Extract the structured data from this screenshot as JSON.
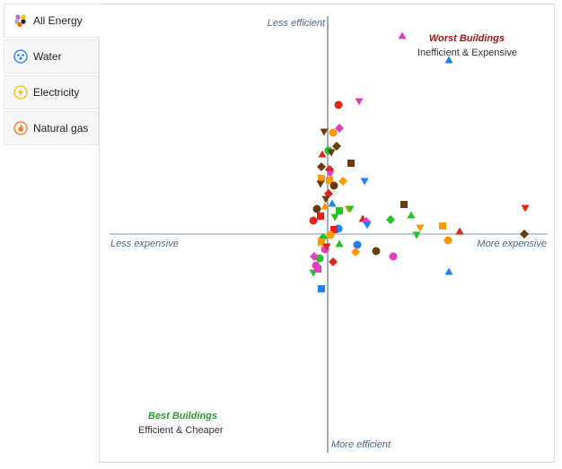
{
  "tabs": [
    {
      "label": "All Energy",
      "icon": "all-energy-icon",
      "active": true
    },
    {
      "label": "Water",
      "icon": "water-drops-icon",
      "color": "#1e7fff"
    },
    {
      "label": "Electricity",
      "icon": "lightning-icon",
      "color": "#f2c200"
    },
    {
      "label": "Natural gas",
      "icon": "flame-icon",
      "color": "#ff7a1a"
    }
  ],
  "chart_data": {
    "type": "scatter",
    "xlabel_neg": "Less expensive",
    "xlabel_pos": "More expensive",
    "ylabel_pos": "Less efficient",
    "ylabel_neg": "More efficient",
    "quadrants": {
      "worst": {
        "title": "Worst Buildings",
        "subtitle": "Inefficient & Expensive"
      },
      "best": {
        "title": "Best Buildings",
        "subtitle": "Efficient & Cheaper"
      }
    },
    "xlim": [
      -25.5,
      25.5
    ],
    "ylim": [
      -25.5,
      22
    ],
    "colors": {
      "red": "#e2231a",
      "magenta": "#e040c0",
      "brown": "#6b3a0f",
      "orange": "#ff9900",
      "green": "#22c322",
      "blue": "#1e7fff"
    },
    "points": [
      [
        8.3,
        22.1,
        "tu",
        "magenta"
      ],
      [
        13.5,
        19.4,
        "tu",
        "blue"
      ],
      [
        1.2,
        14.4,
        "c",
        "red"
      ],
      [
        3.5,
        14.8,
        "td",
        "magenta"
      ],
      [
        -0.4,
        11.4,
        "td",
        "brown"
      ],
      [
        0.6,
        11.3,
        "c",
        "orange"
      ],
      [
        1.3,
        11.8,
        "d",
        "magenta"
      ],
      [
        0.1,
        9.3,
        "c",
        "green"
      ],
      [
        1,
        9.8,
        "d",
        "brown"
      ],
      [
        0.4,
        9.1,
        "td",
        "brown"
      ],
      [
        -0.6,
        8.9,
        "tu",
        "red"
      ],
      [
        -0.7,
        7.5,
        "d",
        "brown"
      ],
      [
        0.2,
        7.2,
        "d",
        "red"
      ],
      [
        2.6,
        7.9,
        "s",
        "brown"
      ],
      [
        0.3,
        6.7,
        "td",
        "magenta"
      ],
      [
        1.7,
        5.9,
        "d",
        "orange"
      ],
      [
        -0.7,
        6.2,
        "s",
        "orange"
      ],
      [
        0.2,
        6,
        "s",
        "orange"
      ],
      [
        -0.8,
        5.6,
        "td",
        "brown"
      ],
      [
        0.7,
        5.4,
        "c",
        "brown"
      ],
      [
        4.1,
        5.9,
        "td",
        "blue"
      ],
      [
        0.1,
        4.5,
        "d",
        "red"
      ],
      [
        -0.2,
        3.9,
        "td",
        "brown"
      ],
      [
        0.5,
        3.4,
        "tu",
        "blue"
      ],
      [
        -1.2,
        2.8,
        "c",
        "brown"
      ],
      [
        -0.3,
        3.1,
        "tu",
        "orange"
      ],
      [
        1.3,
        2.6,
        "s",
        "green"
      ],
      [
        2.3,
        2.8,
        "td",
        "orange"
      ],
      [
        2.5,
        2.8,
        "td",
        "green"
      ],
      [
        0.8,
        1.9,
        "td",
        "green"
      ],
      [
        -0.8,
        2,
        "s",
        "red"
      ],
      [
        -1.6,
        1.5,
        "c",
        "red"
      ],
      [
        3.9,
        1.7,
        "tu",
        "red"
      ],
      [
        4.3,
        1.4,
        "d",
        "magenta"
      ],
      [
        4.4,
        1,
        "td",
        "blue"
      ],
      [
        7,
        1.6,
        "d",
        "green"
      ],
      [
        8.5,
        3.3,
        "s",
        "brown"
      ],
      [
        9.3,
        2.1,
        "tu",
        "green"
      ],
      [
        10.3,
        0.7,
        "td",
        "orange"
      ],
      [
        9.9,
        -0.1,
        "td",
        "green"
      ],
      [
        12.8,
        0.9,
        "s",
        "orange"
      ],
      [
        13.4,
        -0.7,
        "c",
        "orange"
      ],
      [
        14.7,
        0.3,
        "tu",
        "red"
      ],
      [
        22,
        2.9,
        "td",
        "red"
      ],
      [
        21.9,
        0,
        "d",
        "brown"
      ],
      [
        1.2,
        0.6,
        "c",
        "blue"
      ],
      [
        0.7,
        0.5,
        "s",
        "red"
      ],
      [
        1.3,
        -1.1,
        "tu",
        "green"
      ],
      [
        3.3,
        -1.2,
        "c",
        "blue"
      ],
      [
        3.1,
        -2,
        "d",
        "orange"
      ],
      [
        5.4,
        -1.9,
        "c",
        "brown"
      ],
      [
        7.3,
        -2.5,
        "c",
        "magenta"
      ],
      [
        0.6,
        -3.1,
        "d",
        "red"
      ],
      [
        13.5,
        -4.2,
        "tu",
        "blue"
      ],
      [
        -0.7,
        -6.1,
        "s",
        "blue"
      ],
      [
        -0.5,
        -0.4,
        "d",
        "green"
      ],
      [
        -0.7,
        -0.9,
        "s",
        "orange"
      ],
      [
        -0.3,
        -1.7,
        "c",
        "magenta"
      ],
      [
        -0.9,
        -2.7,
        "c",
        "green"
      ],
      [
        -1.3,
        -3.5,
        "c",
        "magenta"
      ],
      [
        -1.6,
        -4.3,
        "td",
        "green"
      ],
      [
        -1.1,
        -3.9,
        "s",
        "magenta"
      ],
      [
        -1.5,
        -2.5,
        "d",
        "magenta"
      ],
      [
        -0.1,
        -1.4,
        "td",
        "red"
      ],
      [
        0.3,
        -0.1,
        "c",
        "orange"
      ]
    ]
  }
}
